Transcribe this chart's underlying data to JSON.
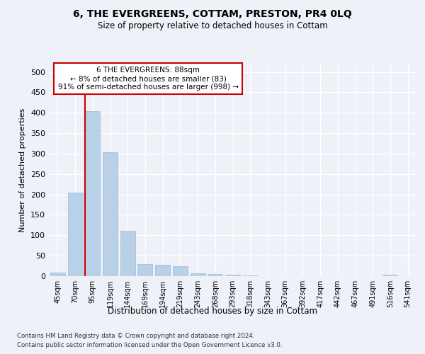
{
  "title_line1": "6, THE EVERGREENS, COTTAM, PRESTON, PR4 0LQ",
  "title_line2": "Size of property relative to detached houses in Cottam",
  "xlabel": "Distribution of detached houses by size in Cottam",
  "ylabel": "Number of detached properties",
  "categories": [
    "45sqm",
    "70sqm",
    "95sqm",
    "119sqm",
    "144sqm",
    "169sqm",
    "194sqm",
    "219sqm",
    "243sqm",
    "268sqm",
    "293sqm",
    "318sqm",
    "343sqm",
    "367sqm",
    "392sqm",
    "417sqm",
    "442sqm",
    "467sqm",
    "491sqm",
    "516sqm",
    "541sqm"
  ],
  "values": [
    8,
    205,
    403,
    303,
    111,
    29,
    27,
    25,
    7,
    6,
    4,
    1,
    0,
    0,
    0,
    0,
    0,
    0,
    0,
    4,
    0
  ],
  "bar_color": "#b8d0e8",
  "bar_edge_color": "#a0b8d0",
  "vline_color": "#cc0000",
  "annotation_text": "6 THE EVERGREENS: 88sqm\n← 8% of detached houses are smaller (83)\n91% of semi-detached houses are larger (998) →",
  "ylim": [
    0,
    520
  ],
  "yticks": [
    0,
    50,
    100,
    150,
    200,
    250,
    300,
    350,
    400,
    450,
    500
  ],
  "footer_line1": "Contains HM Land Registry data © Crown copyright and database right 2024.",
  "footer_line2": "Contains public sector information licensed under the Open Government Licence v3.0.",
  "bg_color": "#eef2f8",
  "plot_bg_color": "#eef2f8"
}
